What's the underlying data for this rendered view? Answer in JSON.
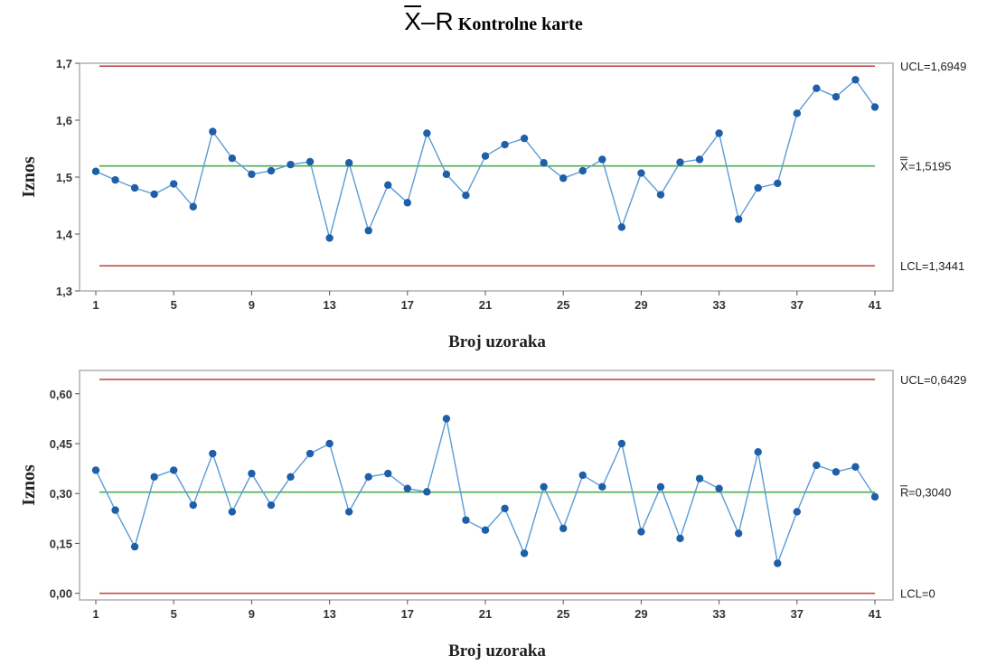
{
  "title": {
    "symbol_x": "X",
    "symbol_dash": "–",
    "symbol_r": "R",
    "text": "Kontrolne karte"
  },
  "chart_data": [
    {
      "type": "line",
      "chart_kind": "xbar",
      "ylabel": "Iznos",
      "xlabel": "Broj uzoraka",
      "ylim": [
        1.3,
        1.7
      ],
      "yticks": [
        1.3,
        1.4,
        1.5,
        1.6,
        1.7
      ],
      "ytick_labels": [
        "1,3",
        "1,4",
        "1,5",
        "1,6",
        "1,7"
      ],
      "xticks": [
        1,
        5,
        9,
        13,
        17,
        21,
        25,
        29,
        33,
        37,
        41
      ],
      "xlim": [
        0.5,
        41.5
      ],
      "x": [
        1,
        2,
        3,
        4,
        5,
        6,
        7,
        8,
        9,
        10,
        11,
        12,
        13,
        14,
        15,
        16,
        17,
        18,
        19,
        20,
        21,
        22,
        23,
        24,
        25,
        26,
        27,
        28,
        29,
        30,
        31,
        32,
        33,
        34,
        35,
        36,
        37,
        38,
        39,
        40,
        41
      ],
      "values": [
        1.51,
        1.495,
        1.481,
        1.47,
        1.488,
        1.448,
        1.58,
        1.533,
        1.505,
        1.511,
        1.522,
        1.527,
        1.393,
        1.525,
        1.406,
        1.486,
        1.455,
        1.577,
        1.505,
        1.468,
        1.537,
        1.557,
        1.568,
        1.525,
        1.498,
        1.511,
        1.531,
        1.412,
        1.507,
        1.469,
        1.526,
        1.531,
        1.577,
        1.426,
        1.481,
        1.489,
        1.612,
        1.656,
        1.641,
        1.671,
        1.623
      ],
      "ucl": 1.6949,
      "center": 1.5195,
      "lcl": 1.3441,
      "ucl_label": "UCL=1,6949",
      "center_label_symbol": "X",
      "center_label_value": "=1,5195",
      "lcl_label": "LCL=1,3441",
      "grid": false,
      "colors": {
        "series": "#5b9bd5",
        "marker": "#1f5fa8",
        "limits": "#c0504d",
        "center": "#4caf50"
      }
    },
    {
      "type": "line",
      "chart_kind": "range",
      "ylabel": "Iznos",
      "xlabel": "Broj uzoraka",
      "ylim": [
        -0.02,
        0.67
      ],
      "yticks": [
        0.0,
        0.15,
        0.3,
        0.45,
        0.6
      ],
      "ytick_labels": [
        "0,00",
        "0,15",
        "0,30",
        "0,45",
        "0,60"
      ],
      "xticks": [
        1,
        5,
        9,
        13,
        17,
        21,
        25,
        29,
        33,
        37,
        41
      ],
      "xlim": [
        0.5,
        41.5
      ],
      "x": [
        1,
        2,
        3,
        4,
        5,
        6,
        7,
        8,
        9,
        10,
        11,
        12,
        13,
        14,
        15,
        16,
        17,
        18,
        19,
        20,
        21,
        22,
        23,
        24,
        25,
        26,
        27,
        28,
        29,
        30,
        31,
        32,
        33,
        34,
        35,
        36,
        37,
        38,
        39,
        40,
        41
      ],
      "values": [
        0.37,
        0.25,
        0.14,
        0.35,
        0.37,
        0.265,
        0.42,
        0.245,
        0.36,
        0.265,
        0.35,
        0.42,
        0.45,
        0.245,
        0.35,
        0.36,
        0.315,
        0.305,
        0.525,
        0.22,
        0.19,
        0.255,
        0.12,
        0.32,
        0.195,
        0.355,
        0.32,
        0.45,
        0.185,
        0.32,
        0.165,
        0.345,
        0.315,
        0.18,
        0.425,
        0.09,
        0.245,
        0.385,
        0.365,
        0.38,
        0.29
      ],
      "ucl": 0.6429,
      "center": 0.304,
      "lcl": 0.0,
      "ucl_label": "UCL=0,6429",
      "center_label_symbol": "R",
      "center_label_value": "=0,3040",
      "lcl_label": "LCL=0",
      "grid": false,
      "colors": {
        "series": "#5b9bd5",
        "marker": "#1f5fa8",
        "limits": "#c0504d",
        "center": "#4caf50"
      }
    }
  ]
}
